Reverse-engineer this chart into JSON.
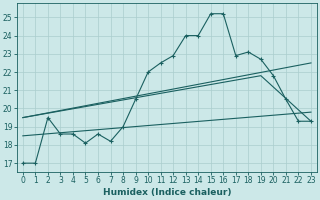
{
  "xlabel": "Humidex (Indice chaleur)",
  "bg_color": "#cce8e8",
  "grid_color": "#aacece",
  "line_color": "#1a6060",
  "xlim": [
    -0.5,
    23.5
  ],
  "ylim": [
    16.5,
    25.8
  ],
  "yticks": [
    17,
    18,
    19,
    20,
    21,
    22,
    23,
    24,
    25
  ],
  "xticks": [
    0,
    1,
    2,
    3,
    4,
    5,
    6,
    7,
    8,
    9,
    10,
    11,
    12,
    13,
    14,
    15,
    16,
    17,
    18,
    19,
    20,
    21,
    22,
    23
  ],
  "line1_x": [
    0,
    1,
    2,
    3,
    4,
    5,
    6,
    7,
    8,
    9,
    10,
    11,
    12,
    13,
    14,
    15,
    16,
    17,
    18,
    19,
    20,
    21,
    22,
    23
  ],
  "line1_y": [
    17.0,
    17.0,
    19.5,
    18.6,
    18.6,
    18.1,
    18.6,
    18.2,
    19.0,
    20.5,
    22.0,
    22.5,
    22.9,
    24.0,
    24.0,
    25.2,
    25.2,
    22.9,
    23.1,
    22.7,
    21.8,
    20.5,
    19.3,
    19.3
  ],
  "line2_x": [
    0,
    23
  ],
  "line2_y": [
    19.5,
    22.5
  ],
  "line3_x": [
    0,
    23
  ],
  "line3_y": [
    18.5,
    19.8
  ],
  "line4_x": [
    0,
    19,
    23
  ],
  "line4_y": [
    19.5,
    21.8,
    19.3
  ]
}
